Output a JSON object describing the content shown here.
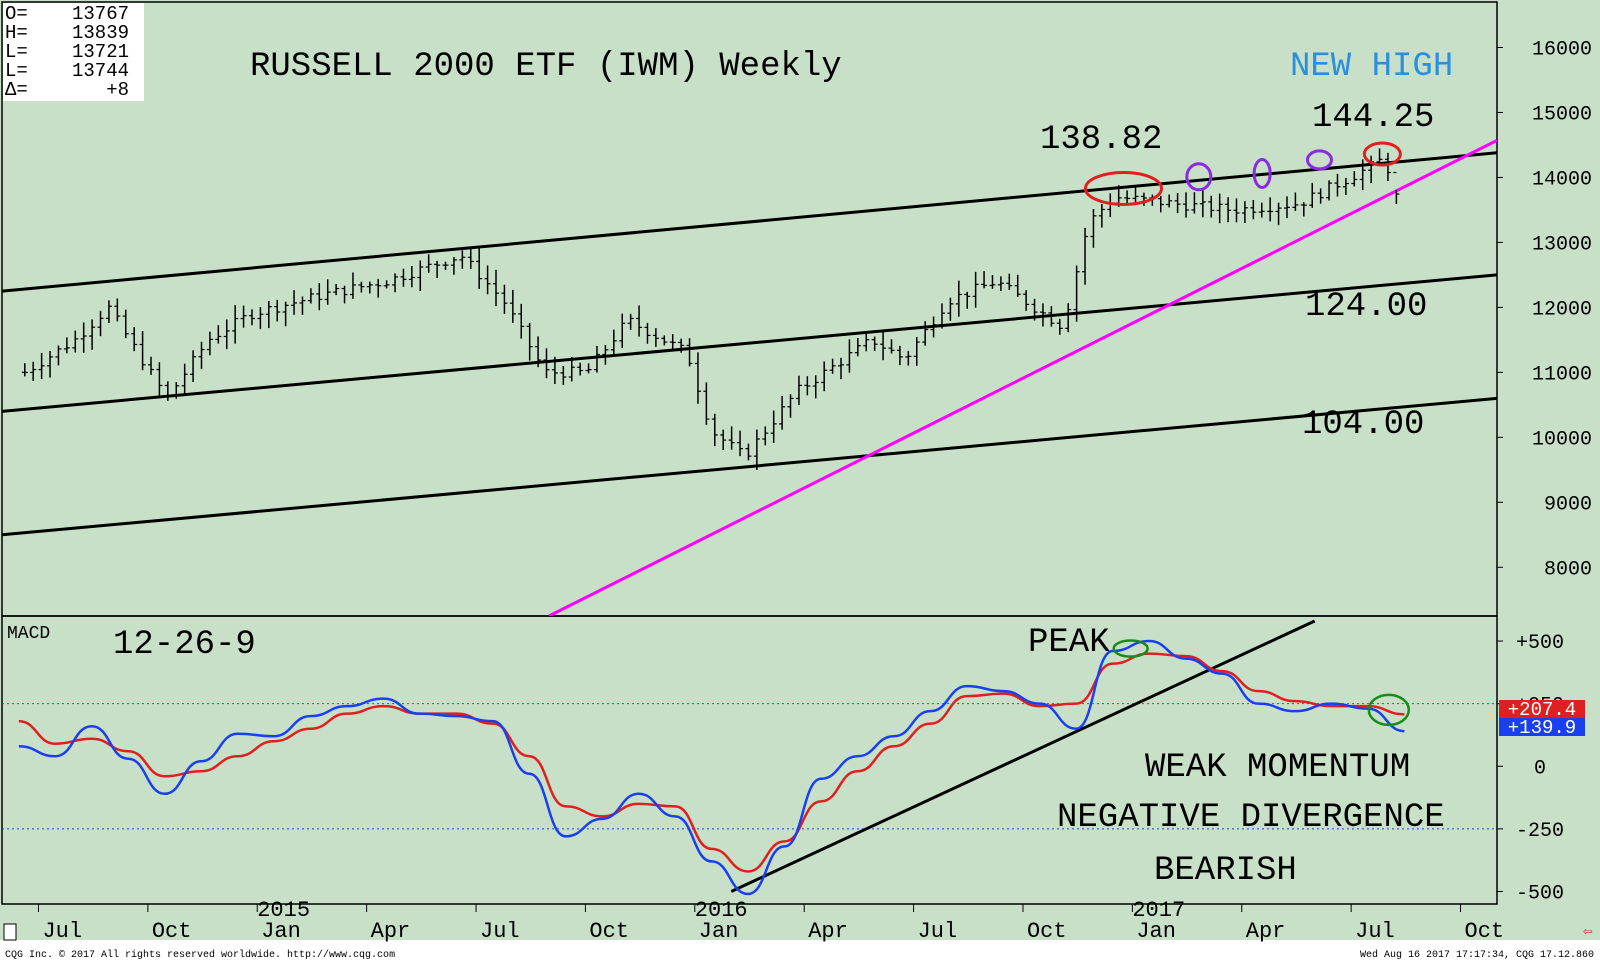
{
  "ohlc_box": {
    "O": "13767",
    "H": "13839",
    "L1": "13721",
    "L2": "13744",
    "D": "+8"
  },
  "title": "RUSSELL 2000 ETF (IWM) Weekly",
  "price_notes": [
    {
      "text": "NEW HIGH",
      "color": "#2a8fe0"
    },
    {
      "text": "144.25",
      "color": "#000000"
    },
    {
      "text": "138.82",
      "color": "#000000"
    },
    {
      "text": "124.00",
      "color": "#000000"
    },
    {
      "text": "104.00",
      "color": "#000000"
    }
  ],
  "macd_label": "MACD",
  "macd_params": "12-26-9",
  "macd_notes": [
    "PEAK",
    "WEAK MOMENTUM",
    "NEGATIVE DIVERGENCE",
    "BEARISH"
  ],
  "x_month_labels": [
    "Jul",
    "Oct",
    "Jan",
    "Apr",
    "Jul",
    "Oct",
    "Jan",
    "Apr",
    "Jul",
    "Oct",
    "Jan",
    "Apr",
    "Jul",
    "Oct"
  ],
  "x_year_labels": [
    "2015",
    "2016",
    "2017"
  ],
  "price_ticks": [
    "16000",
    "15000",
    "14000",
    "13000",
    "12000",
    "11000",
    "10000",
    "9000",
    "8000"
  ],
  "macd_ticks": [
    "+500",
    "+250",
    "0",
    "-250",
    "-500"
  ],
  "macd_value_tags": [
    {
      "text": "+207.4",
      "color": "#e02020"
    },
    {
      "text": "+139.9",
      "color": "#1a3ff0"
    }
  ],
  "footer_left": "CQG Inc. © 2017 All rights reserved worldwide. http://www.cqg.com",
  "footer_right": "Wed Aug 16 2017 17:17:34, CQG 17.12.860",
  "colors": {
    "background": "#c8e0c8",
    "price_bars": "#000000",
    "trendline": "#ff00ff",
    "macd": "#1a3ff0",
    "signal": "#e02020",
    "annot_red": "#e02020",
    "annot_purple": "#8a2be2",
    "annot_green": "#1a8a1a"
  },
  "chart_data": [
    {
      "type": "bar",
      "subtype": "ohlc",
      "title": "RUSSELL 2000 ETF (IWM) Weekly",
      "x_range": [
        "2014-06",
        "2017-11"
      ],
      "ylim": [
        7250,
        16700
      ],
      "y_ticks": [
        8000,
        9000,
        10000,
        11000,
        12000,
        13000,
        14000,
        15000,
        16000
      ],
      "grid": false,
      "last_bar": {
        "open": 13767,
        "high": 13839,
        "low": 13721,
        "last": 13744,
        "change": 8
      },
      "price_path": [
        {
          "x": "2014-06-20",
          "y": 11000
        },
        {
          "x": "2014-08-01",
          "y": 11500
        },
        {
          "x": "2014-08-29",
          "y": 12000
        },
        {
          "x": "2014-10-03",
          "y": 11000
        },
        {
          "x": "2014-10-17",
          "y": 10600
        },
        {
          "x": "2014-11-21",
          "y": 11500
        },
        {
          "x": "2014-12-26",
          "y": 11900
        },
        {
          "x": "2015-02-27",
          "y": 12200
        },
        {
          "x": "2015-04-17",
          "y": 12400
        },
        {
          "x": "2015-06-19",
          "y": 12800
        },
        {
          "x": "2015-07-24",
          "y": 12100
        },
        {
          "x": "2015-08-28",
          "y": 11000
        },
        {
          "x": "2015-10-02",
          "y": 11000
        },
        {
          "x": "2015-11-06",
          "y": 11800
        },
        {
          "x": "2015-12-25",
          "y": 11300
        },
        {
          "x": "2016-01-15",
          "y": 10100
        },
        {
          "x": "2016-02-12",
          "y": 9700
        },
        {
          "x": "2016-03-25",
          "y": 10700
        },
        {
          "x": "2016-05-27",
          "y": 11500
        },
        {
          "x": "2016-06-24",
          "y": 11200
        },
        {
          "x": "2016-07-29",
          "y": 12100
        },
        {
          "x": "2016-09-09",
          "y": 12400
        },
        {
          "x": "2016-11-04",
          "y": 11700
        },
        {
          "x": "2016-11-25",
          "y": 13300
        },
        {
          "x": "2016-12-16",
          "y": 13700
        },
        {
          "x": "2017-02-03",
          "y": 13600
        },
        {
          "x": "2017-03-24",
          "y": 13500
        },
        {
          "x": "2017-05-19",
          "y": 13600
        },
        {
          "x": "2017-07-21",
          "y": 14200
        },
        {
          "x": "2017-07-28",
          "y": 14300
        },
        {
          "x": "2017-08-11",
          "y": 13700
        }
      ],
      "annotations": [
        {
          "text": "NEW HIGH"
        },
        {
          "text": "144.25"
        },
        {
          "text": "138.82"
        },
        {
          "text": "124.00"
        },
        {
          "text": "104.00"
        }
      ],
      "channel_lines": [
        {
          "from": {
            "x": "2014-06",
            "y": 12250
          },
          "to": {
            "x": "2017-11",
            "y": 14380
          }
        },
        {
          "from": {
            "x": "2014-06",
            "y": 10400
          },
          "to": {
            "x": "2017-11",
            "y": 12500
          }
        },
        {
          "from": {
            "x": "2014-06",
            "y": 8500
          },
          "to": {
            "x": "2017-11",
            "y": 10600
          }
        }
      ],
      "trendline": {
        "from": {
          "x": "2015-09",
          "y": 7250
        },
        "to": {
          "x": "2017-11",
          "y": 14570
        }
      }
    },
    {
      "type": "line",
      "title": "MACD",
      "subtitle": "12-26-9",
      "ylim": [
        -550,
        600
      ],
      "y_ticks": [
        -500,
        -250,
        0,
        250,
        500
      ],
      "grid": false,
      "legend": "right",
      "series": [
        {
          "color": "#1a3ff0",
          "last": 139.9,
          "points": [
            {
              "x": "2014-06",
              "y": 80
            },
            {
              "x": "2014-07",
              "y": 40
            },
            {
              "x": "2014-08",
              "y": 160
            },
            {
              "x": "2014-09",
              "y": 30
            },
            {
              "x": "2014-10",
              "y": -110
            },
            {
              "x": "2014-11",
              "y": 20
            },
            {
              "x": "2014-12",
              "y": 130
            },
            {
              "x": "2015-01",
              "y": 120
            },
            {
              "x": "2015-02",
              "y": 200
            },
            {
              "x": "2015-03",
              "y": 240
            },
            {
              "x": "2015-04",
              "y": 270
            },
            {
              "x": "2015-05",
              "y": 210
            },
            {
              "x": "2015-06",
              "y": 200
            },
            {
              "x": "2015-07",
              "y": 180
            },
            {
              "x": "2015-08",
              "y": -30
            },
            {
              "x": "2015-09",
              "y": -280
            },
            {
              "x": "2015-10",
              "y": -210
            },
            {
              "x": "2015-11",
              "y": -110
            },
            {
              "x": "2015-12",
              "y": -200
            },
            {
              "x": "2016-01",
              "y": -380
            },
            {
              "x": "2016-02",
              "y": -510
            },
            {
              "x": "2016-03",
              "y": -320
            },
            {
              "x": "2016-04",
              "y": -50
            },
            {
              "x": "2016-05",
              "y": 40
            },
            {
              "x": "2016-06",
              "y": 120
            },
            {
              "x": "2016-07",
              "y": 220
            },
            {
              "x": "2016-08",
              "y": 320
            },
            {
              "x": "2016-09",
              "y": 300
            },
            {
              "x": "2016-10",
              "y": 250
            },
            {
              "x": "2016-11",
              "y": 150
            },
            {
              "x": "2016-12",
              "y": 460
            },
            {
              "x": "2017-01",
              "y": 500
            },
            {
              "x": "2017-02",
              "y": 430
            },
            {
              "x": "2017-03",
              "y": 370
            },
            {
              "x": "2017-04",
              "y": 250
            },
            {
              "x": "2017-05",
              "y": 220
            },
            {
              "x": "2017-06",
              "y": 250
            },
            {
              "x": "2017-07",
              "y": 230
            },
            {
              "x": "2017-08",
              "y": 140
            }
          ]
        },
        {
          "color": "#e02020",
          "last": 207.4,
          "points": [
            {
              "x": "2014-06",
              "y": 180
            },
            {
              "x": "2014-07",
              "y": 90
            },
            {
              "x": "2014-08",
              "y": 110
            },
            {
              "x": "2014-09",
              "y": 60
            },
            {
              "x": "2014-10",
              "y": -40
            },
            {
              "x": "2014-11",
              "y": -20
            },
            {
              "x": "2014-12",
              "y": 40
            },
            {
              "x": "2015-01",
              "y": 100
            },
            {
              "x": "2015-02",
              "y": 150
            },
            {
              "x": "2015-03",
              "y": 210
            },
            {
              "x": "2015-04",
              "y": 240
            },
            {
              "x": "2015-05",
              "y": 210
            },
            {
              "x": "2015-06",
              "y": 210
            },
            {
              "x": "2015-07",
              "y": 170
            },
            {
              "x": "2015-08",
              "y": 40
            },
            {
              "x": "2015-09",
              "y": -160
            },
            {
              "x": "2015-10",
              "y": -200
            },
            {
              "x": "2015-11",
              "y": -150
            },
            {
              "x": "2015-12",
              "y": -160
            },
            {
              "x": "2016-01",
              "y": -330
            },
            {
              "x": "2016-02",
              "y": -420
            },
            {
              "x": "2016-03",
              "y": -300
            },
            {
              "x": "2016-04",
              "y": -140
            },
            {
              "x": "2016-05",
              "y": -20
            },
            {
              "x": "2016-06",
              "y": 80
            },
            {
              "x": "2016-07",
              "y": 170
            },
            {
              "x": "2016-08",
              "y": 280
            },
            {
              "x": "2016-09",
              "y": 290
            },
            {
              "x": "2016-10",
              "y": 240
            },
            {
              "x": "2016-11",
              "y": 250
            },
            {
              "x": "2016-12",
              "y": 410
            },
            {
              "x": "2017-01",
              "y": 450
            },
            {
              "x": "2017-02",
              "y": 440
            },
            {
              "x": "2017-03",
              "y": 380
            },
            {
              "x": "2017-04",
              "y": 300
            },
            {
              "x": "2017-05",
              "y": 260
            },
            {
              "x": "2017-06",
              "y": 240
            },
            {
              "x": "2017-07",
              "y": 240
            },
            {
              "x": "2017-08",
              "y": 207.4
            }
          ]
        }
      ],
      "trendline": {
        "from": {
          "x": "2016-02",
          "y": -500
        },
        "to": {
          "x": "2017-06",
          "y": 580
        }
      },
      "annotations": [
        {
          "text": "PEAK"
        },
        {
          "text": "WEAK MOMENTUM"
        },
        {
          "text": "NEGATIVE DIVERGENCE"
        },
        {
          "text": "BEARISH"
        }
      ]
    }
  ]
}
